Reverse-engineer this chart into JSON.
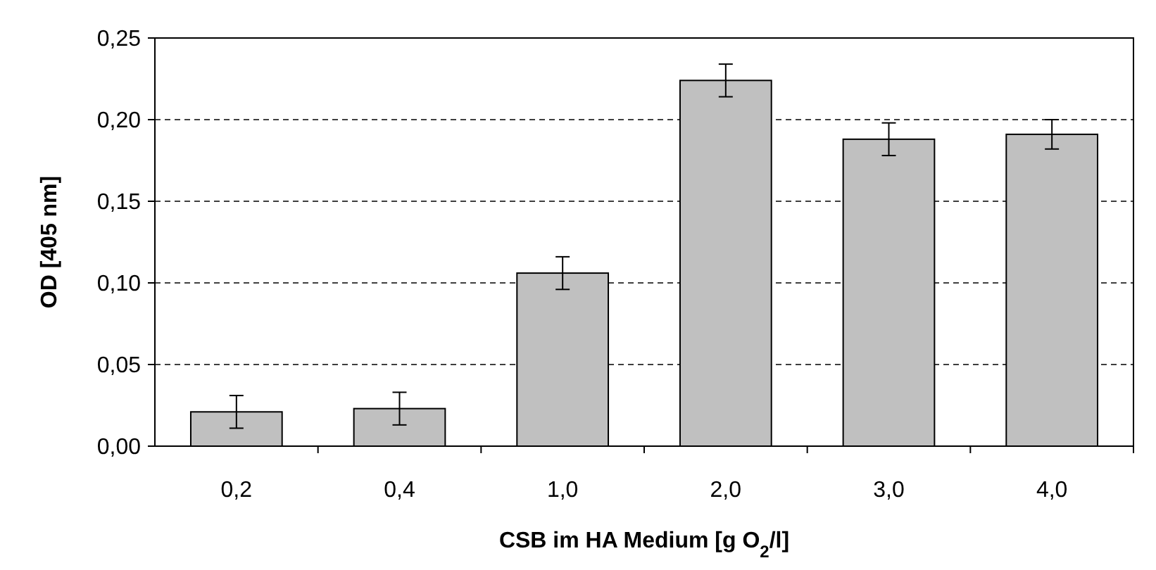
{
  "chart_data": {
    "type": "bar",
    "xlabel": "CSB im HA Medium [g O$_{2}$/l]",
    "ylabel": "OD [405 nm]",
    "categories": [
      "0,2",
      "0,4",
      "1,0",
      "2,0",
      "3,0",
      "4,0"
    ],
    "values": [
      0.021,
      0.023,
      0.106,
      0.224,
      0.188,
      0.191
    ],
    "errors": [
      0.01,
      0.01,
      0.01,
      0.01,
      0.01,
      0.009
    ],
    "color": "#c0c0c0",
    "ylim": [
      0,
      0.25
    ],
    "yticks": [
      {
        "value": 0,
        "label": "0,00"
      },
      {
        "value": 0.05,
        "label": "0,05"
      },
      {
        "value": 0.1,
        "label": "0,10"
      },
      {
        "value": 0.15,
        "label": "0,15"
      },
      {
        "value": 0.2,
        "label": "0,20"
      },
      {
        "value": 0.25,
        "label": "0,25"
      }
    ],
    "grid": "y"
  }
}
